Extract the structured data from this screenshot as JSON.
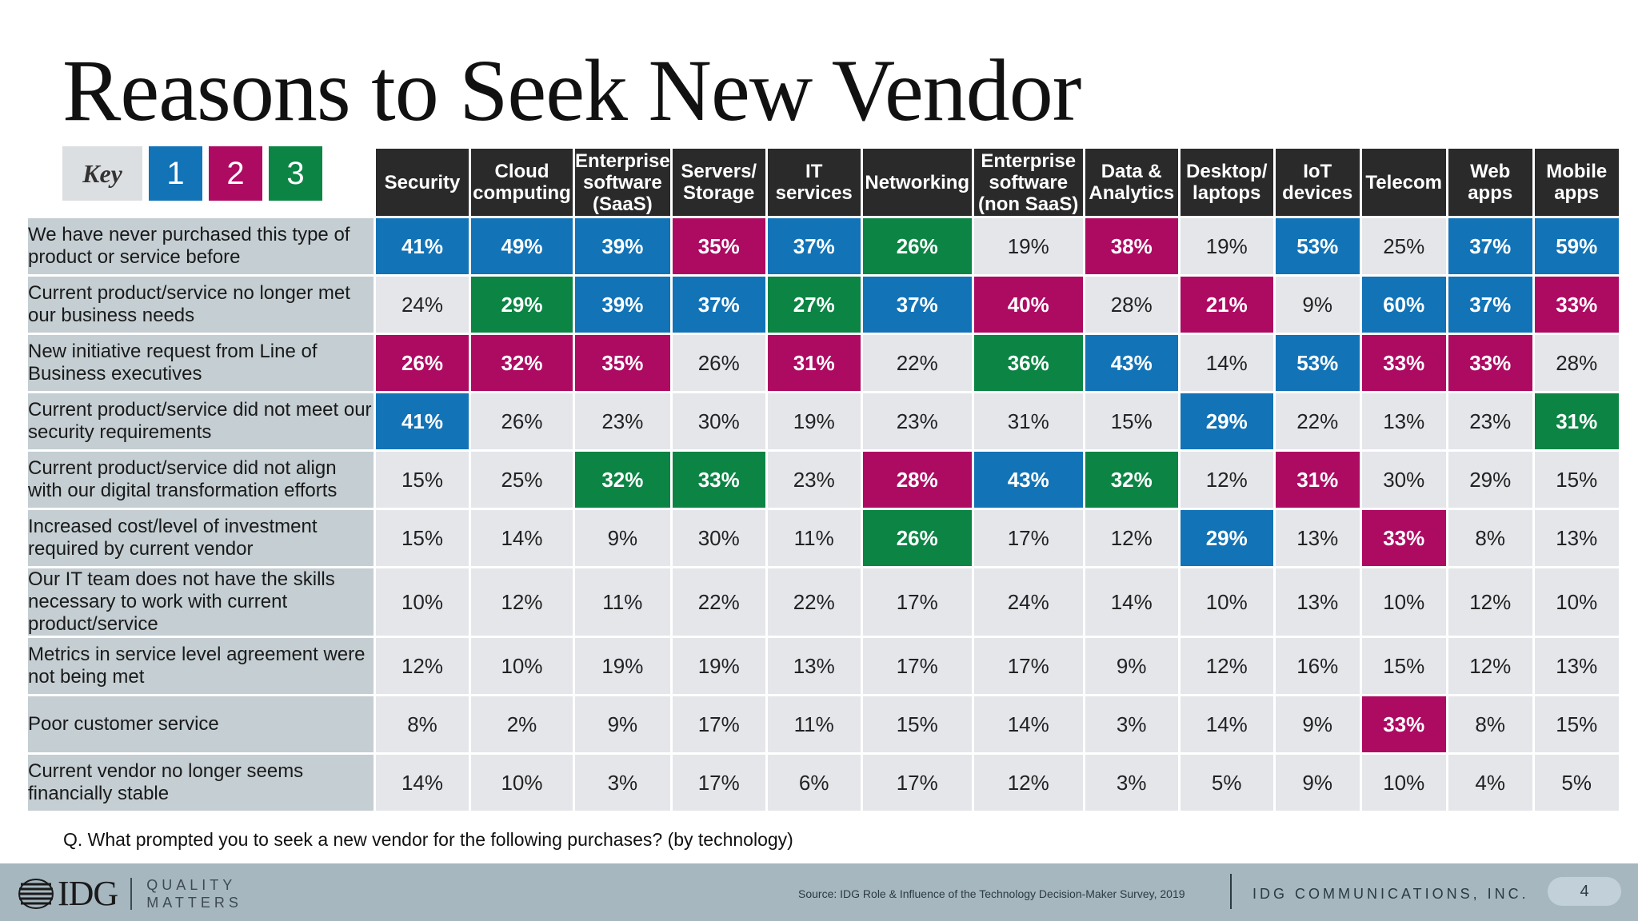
{
  "title": "Reasons to Seek New Vendor",
  "key": {
    "label": "Key",
    "items": [
      {
        "label": "1",
        "color": "#1273b7"
      },
      {
        "label": "2",
        "color": "#ad0a62"
      },
      {
        "label": "3",
        "color": "#0b8444"
      }
    ]
  },
  "table": {
    "columns": [
      "Security",
      "Cloud computing",
      "Enterprise software (SaaS)",
      "Servers/ Storage",
      "IT services",
      "Networking",
      "Enterprise software (non SaaS)",
      "Data & Analytics",
      "Desktop/ laptops",
      "IoT devices",
      "Telecom",
      "Web apps",
      "Mobile apps"
    ],
    "rows": [
      {
        "label": "We have never purchased this type of product or service before",
        "values": [
          "41%",
          "49%",
          "39%",
          "35%",
          "37%",
          "26%",
          "19%",
          "38%",
          "19%",
          "53%",
          "25%",
          "37%",
          "59%"
        ],
        "ranks": [
          1,
          1,
          1,
          2,
          1,
          3,
          0,
          2,
          0,
          1,
          0,
          1,
          1
        ]
      },
      {
        "label": "Current product/service no longer met our business needs",
        "values": [
          "24%",
          "29%",
          "39%",
          "37%",
          "27%",
          "37%",
          "40%",
          "28%",
          "21%",
          "9%",
          "60%",
          "37%",
          "33%"
        ],
        "ranks": [
          0,
          3,
          1,
          1,
          3,
          1,
          2,
          0,
          2,
          0,
          1,
          1,
          2
        ]
      },
      {
        "label": "New initiative request from Line of Business executives",
        "values": [
          "26%",
          "32%",
          "35%",
          "26%",
          "31%",
          "22%",
          "36%",
          "43%",
          "14%",
          "53%",
          "33%",
          "33%",
          "28%"
        ],
        "ranks": [
          2,
          2,
          2,
          0,
          2,
          0,
          3,
          1,
          0,
          1,
          2,
          2,
          0
        ]
      },
      {
        "label": "Current product/service did not meet our security requirements",
        "values": [
          "41%",
          "26%",
          "23%",
          "30%",
          "19%",
          "23%",
          "31%",
          "15%",
          "29%",
          "22%",
          "13%",
          "23%",
          "31%"
        ],
        "ranks": [
          1,
          0,
          0,
          0,
          0,
          0,
          0,
          0,
          1,
          0,
          0,
          0,
          3
        ]
      },
      {
        "label": "Current product/service did not align with our digital transformation efforts",
        "values": [
          "15%",
          "25%",
          "32%",
          "33%",
          "23%",
          "28%",
          "43%",
          "32%",
          "12%",
          "31%",
          "30%",
          "29%",
          "15%"
        ],
        "ranks": [
          0,
          0,
          3,
          3,
          0,
          2,
          1,
          3,
          0,
          2,
          0,
          0,
          0
        ]
      },
      {
        "label": "Increased cost/level of investment required by current vendor",
        "values": [
          "15%",
          "14%",
          "9%",
          "30%",
          "11%",
          "26%",
          "17%",
          "12%",
          "29%",
          "13%",
          "33%",
          "8%",
          "13%"
        ],
        "ranks": [
          0,
          0,
          0,
          0,
          0,
          3,
          0,
          0,
          1,
          0,
          2,
          0,
          0
        ]
      },
      {
        "label": "Our IT team does not have the skills necessary to work with current product/service",
        "values": [
          "10%",
          "12%",
          "11%",
          "22%",
          "22%",
          "17%",
          "24%",
          "14%",
          "10%",
          "13%",
          "10%",
          "12%",
          "10%"
        ],
        "ranks": [
          0,
          0,
          0,
          0,
          0,
          0,
          0,
          0,
          0,
          0,
          0,
          0,
          0
        ]
      },
      {
        "label": "Metrics in service level agreement were not being met",
        "values": [
          "12%",
          "10%",
          "19%",
          "19%",
          "13%",
          "17%",
          "17%",
          "9%",
          "12%",
          "16%",
          "15%",
          "12%",
          "13%"
        ],
        "ranks": [
          0,
          0,
          0,
          0,
          0,
          0,
          0,
          0,
          0,
          0,
          0,
          0,
          0
        ]
      },
      {
        "label": "Poor customer service",
        "values": [
          "8%",
          "2%",
          "9%",
          "17%",
          "11%",
          "15%",
          "14%",
          "3%",
          "14%",
          "9%",
          "33%",
          "8%",
          "15%"
        ],
        "ranks": [
          0,
          0,
          0,
          0,
          0,
          0,
          0,
          0,
          0,
          0,
          2,
          0,
          0
        ]
      },
      {
        "label": "Current vendor no longer seems financially stable",
        "values": [
          "14%",
          "10%",
          "3%",
          "17%",
          "6%",
          "17%",
          "12%",
          "3%",
          "5%",
          "9%",
          "10%",
          "4%",
          "5%"
        ],
        "ranks": [
          0,
          0,
          0,
          0,
          0,
          0,
          0,
          0,
          0,
          0,
          0,
          0,
          0
        ]
      }
    ]
  },
  "question": "Q. What prompted you to seek a new vendor for the following purchases? (by technology)",
  "footer": {
    "logo_text": "IDG",
    "tagline_line1": "QUALITY",
    "tagline_line2": "MATTERS",
    "source": "Source: IDG Role & Influence of the Technology Decision-Maker Survey, 2019",
    "company": "IDG COMMUNICATIONS, INC.",
    "page_number": "4"
  }
}
